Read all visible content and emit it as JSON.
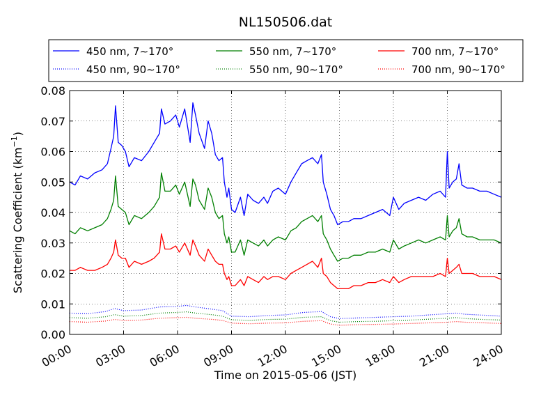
{
  "chart_data": {
    "type": "line",
    "title": "NL150506.dat",
    "xlabel": "Time on 2015-05-06 (JST)",
    "ylabel": "Scattering Coefficient (km",
    "ylabel_sup": "−1",
    "ylabel_close": ")",
    "x_unit": "hours",
    "xlim": [
      0,
      24
    ],
    "ylim": [
      0,
      0.08
    ],
    "grid": true,
    "legend_placement": "top-outside",
    "x_ticks": [
      0,
      3,
      6,
      9,
      12,
      15,
      18,
      21,
      24
    ],
    "x_tick_labels": [
      "00:00",
      "03:00",
      "06:00",
      "09:00",
      "12:00",
      "15:00",
      "18:00",
      "21:00",
      "24:00"
    ],
    "y_ticks": [
      0,
      0.01,
      0.02,
      0.03,
      0.04,
      0.05,
      0.06,
      0.07,
      0.08
    ],
    "y_tick_labels": [
      "0.00",
      "0.01",
      "0.02",
      "0.03",
      "0.04",
      "0.05",
      "0.06",
      "0.07",
      "0.08"
    ],
    "series": [
      {
        "name": "450 nm, 7∼170°",
        "color": "#0000ff",
        "style": "solid",
        "x": [
          0.0,
          0.3,
          0.6,
          1.0,
          1.4,
          1.8,
          2.1,
          2.3,
          2.45,
          2.55,
          2.7,
          2.9,
          3.1,
          3.3,
          3.6,
          4.0,
          4.4,
          4.7,
          5.0,
          5.1,
          5.3,
          5.6,
          5.9,
          6.1,
          6.4,
          6.7,
          6.85,
          7.0,
          7.2,
          7.5,
          7.7,
          7.9,
          8.1,
          8.3,
          8.5,
          8.6,
          8.75,
          8.85,
          9.0,
          9.2,
          9.5,
          9.7,
          9.9,
          10.2,
          10.5,
          10.8,
          11.0,
          11.3,
          11.6,
          12.0,
          12.3,
          12.6,
          12.9,
          13.2,
          13.5,
          13.8,
          14.0,
          14.1,
          14.3,
          14.5,
          14.7,
          14.9,
          15.2,
          15.5,
          15.8,
          16.2,
          16.6,
          17.0,
          17.4,
          17.8,
          18.0,
          18.3,
          18.6,
          19.0,
          19.4,
          19.8,
          20.2,
          20.6,
          20.9,
          21.0,
          21.1,
          21.3,
          21.5,
          21.65,
          21.8,
          22.1,
          22.4,
          22.8,
          23.2,
          23.6,
          24.0
        ],
        "y": [
          0.05,
          0.049,
          0.052,
          0.051,
          0.053,
          0.054,
          0.056,
          0.061,
          0.065,
          0.075,
          0.063,
          0.062,
          0.06,
          0.055,
          0.058,
          0.057,
          0.06,
          0.063,
          0.066,
          0.074,
          0.069,
          0.07,
          0.072,
          0.068,
          0.074,
          0.063,
          0.076,
          0.072,
          0.066,
          0.061,
          0.07,
          0.066,
          0.059,
          0.057,
          0.058,
          0.05,
          0.045,
          0.048,
          0.041,
          0.04,
          0.045,
          0.039,
          0.046,
          0.044,
          0.043,
          0.045,
          0.043,
          0.047,
          0.048,
          0.046,
          0.05,
          0.053,
          0.056,
          0.057,
          0.058,
          0.056,
          0.059,
          0.05,
          0.046,
          0.041,
          0.039,
          0.036,
          0.037,
          0.037,
          0.038,
          0.038,
          0.039,
          0.04,
          0.041,
          0.039,
          0.045,
          0.041,
          0.043,
          0.044,
          0.045,
          0.044,
          0.046,
          0.047,
          0.045,
          0.06,
          0.048,
          0.05,
          0.051,
          0.056,
          0.049,
          0.048,
          0.048,
          0.047,
          0.047,
          0.046,
          0.045
        ]
      },
      {
        "name": "550 nm, 7∼170°",
        "color": "#007f00",
        "style": "solid",
        "x": [
          0.0,
          0.3,
          0.6,
          1.0,
          1.4,
          1.8,
          2.1,
          2.3,
          2.45,
          2.55,
          2.7,
          2.9,
          3.1,
          3.3,
          3.6,
          4.0,
          4.4,
          4.7,
          5.0,
          5.1,
          5.3,
          5.6,
          5.9,
          6.1,
          6.4,
          6.7,
          6.85,
          7.0,
          7.2,
          7.5,
          7.7,
          7.9,
          8.1,
          8.3,
          8.5,
          8.6,
          8.75,
          8.85,
          9.0,
          9.2,
          9.5,
          9.7,
          9.9,
          10.2,
          10.5,
          10.8,
          11.0,
          11.3,
          11.6,
          12.0,
          12.3,
          12.6,
          12.9,
          13.2,
          13.5,
          13.8,
          14.0,
          14.1,
          14.3,
          14.5,
          14.7,
          14.9,
          15.2,
          15.5,
          15.8,
          16.2,
          16.6,
          17.0,
          17.4,
          17.8,
          18.0,
          18.3,
          18.6,
          19.0,
          19.4,
          19.8,
          20.2,
          20.6,
          20.9,
          21.0,
          21.1,
          21.3,
          21.5,
          21.65,
          21.8,
          22.1,
          22.4,
          22.8,
          23.2,
          23.6,
          24.0
        ],
        "y": [
          0.034,
          0.033,
          0.035,
          0.034,
          0.035,
          0.036,
          0.038,
          0.041,
          0.044,
          0.052,
          0.042,
          0.041,
          0.04,
          0.036,
          0.039,
          0.038,
          0.04,
          0.042,
          0.045,
          0.053,
          0.047,
          0.047,
          0.049,
          0.046,
          0.05,
          0.042,
          0.051,
          0.049,
          0.044,
          0.041,
          0.048,
          0.045,
          0.04,
          0.038,
          0.039,
          0.033,
          0.03,
          0.032,
          0.027,
          0.027,
          0.031,
          0.026,
          0.031,
          0.03,
          0.029,
          0.031,
          0.029,
          0.031,
          0.032,
          0.031,
          0.034,
          0.035,
          0.037,
          0.038,
          0.039,
          0.037,
          0.039,
          0.033,
          0.031,
          0.028,
          0.026,
          0.024,
          0.025,
          0.025,
          0.026,
          0.026,
          0.027,
          0.027,
          0.028,
          0.027,
          0.031,
          0.028,
          0.029,
          0.03,
          0.031,
          0.03,
          0.031,
          0.032,
          0.031,
          0.039,
          0.032,
          0.034,
          0.035,
          0.038,
          0.033,
          0.032,
          0.032,
          0.031,
          0.031,
          0.031,
          0.03
        ]
      },
      {
        "name": "700 nm, 7∼170°",
        "color": "#ff0000",
        "style": "solid",
        "x": [
          0.0,
          0.3,
          0.6,
          1.0,
          1.4,
          1.8,
          2.1,
          2.3,
          2.45,
          2.55,
          2.7,
          2.9,
          3.1,
          3.3,
          3.6,
          4.0,
          4.4,
          4.7,
          5.0,
          5.1,
          5.3,
          5.6,
          5.9,
          6.1,
          6.4,
          6.7,
          6.85,
          7.0,
          7.2,
          7.5,
          7.7,
          7.9,
          8.1,
          8.3,
          8.5,
          8.6,
          8.75,
          8.85,
          9.0,
          9.2,
          9.5,
          9.7,
          9.9,
          10.2,
          10.5,
          10.8,
          11.0,
          11.3,
          11.6,
          12.0,
          12.3,
          12.6,
          12.9,
          13.2,
          13.5,
          13.8,
          14.0,
          14.1,
          14.3,
          14.5,
          14.7,
          14.9,
          15.2,
          15.5,
          15.8,
          16.2,
          16.6,
          17.0,
          17.4,
          17.8,
          18.0,
          18.3,
          18.6,
          19.0,
          19.4,
          19.8,
          20.2,
          20.6,
          20.9,
          21.0,
          21.1,
          21.3,
          21.5,
          21.65,
          21.8,
          22.1,
          22.4,
          22.8,
          23.2,
          23.6,
          24.0
        ],
        "y": [
          0.021,
          0.021,
          0.022,
          0.021,
          0.021,
          0.022,
          0.023,
          0.025,
          0.027,
          0.031,
          0.026,
          0.025,
          0.025,
          0.022,
          0.024,
          0.023,
          0.024,
          0.025,
          0.027,
          0.033,
          0.028,
          0.028,
          0.029,
          0.027,
          0.03,
          0.026,
          0.031,
          0.029,
          0.026,
          0.024,
          0.028,
          0.026,
          0.024,
          0.023,
          0.023,
          0.02,
          0.018,
          0.019,
          0.016,
          0.016,
          0.018,
          0.016,
          0.019,
          0.018,
          0.017,
          0.019,
          0.018,
          0.019,
          0.019,
          0.018,
          0.02,
          0.021,
          0.022,
          0.023,
          0.024,
          0.022,
          0.025,
          0.02,
          0.019,
          0.017,
          0.016,
          0.015,
          0.015,
          0.015,
          0.016,
          0.016,
          0.017,
          0.017,
          0.018,
          0.017,
          0.019,
          0.017,
          0.018,
          0.019,
          0.019,
          0.019,
          0.019,
          0.02,
          0.019,
          0.025,
          0.02,
          0.021,
          0.022,
          0.023,
          0.02,
          0.02,
          0.02,
          0.019,
          0.019,
          0.019,
          0.018
        ]
      },
      {
        "name": "450 nm, 90∼170°",
        "color": "#0000ff",
        "style": "dotted",
        "x": [
          0.0,
          1.0,
          2.0,
          2.5,
          3.0,
          4.0,
          5.0,
          6.0,
          6.5,
          7.0,
          8.0,
          8.5,
          9.0,
          10.0,
          11.0,
          12.0,
          13.0,
          14.0,
          14.5,
          15.0,
          16.0,
          17.0,
          18.0,
          19.0,
          20.0,
          21.0,
          21.5,
          22.0,
          23.0,
          24.0
        ],
        "y": [
          0.007,
          0.0068,
          0.0075,
          0.0085,
          0.0078,
          0.008,
          0.009,
          0.0092,
          0.0095,
          0.009,
          0.0082,
          0.0078,
          0.006,
          0.0058,
          0.0062,
          0.0064,
          0.0072,
          0.0075,
          0.0058,
          0.0052,
          0.0054,
          0.0056,
          0.0058,
          0.006,
          0.0064,
          0.0068,
          0.007,
          0.0066,
          0.0063,
          0.006
        ]
      },
      {
        "name": "550 nm, 90∼170°",
        "color": "#007f00",
        "style": "dotted",
        "x": [
          0.0,
          1.0,
          2.0,
          2.5,
          3.0,
          4.0,
          5.0,
          6.0,
          6.5,
          7.0,
          8.0,
          8.5,
          9.0,
          10.0,
          11.0,
          12.0,
          13.0,
          14.0,
          14.5,
          15.0,
          16.0,
          17.0,
          18.0,
          19.0,
          20.0,
          21.0,
          21.5,
          22.0,
          23.0,
          24.0
        ],
        "y": [
          0.0055,
          0.0053,
          0.0058,
          0.0065,
          0.006,
          0.0062,
          0.007,
          0.0072,
          0.0074,
          0.007,
          0.0064,
          0.006,
          0.0048,
          0.0046,
          0.0049,
          0.005,
          0.0056,
          0.0058,
          0.0045,
          0.004,
          0.0042,
          0.0043,
          0.0045,
          0.0047,
          0.005,
          0.0053,
          0.0055,
          0.0052,
          0.0049,
          0.0047
        ]
      },
      {
        "name": "700 nm, 90∼170°",
        "color": "#ff0000",
        "style": "dotted",
        "x": [
          0.0,
          1.0,
          2.0,
          2.5,
          3.0,
          4.0,
          5.0,
          6.0,
          6.5,
          7.0,
          8.0,
          8.5,
          9.0,
          10.0,
          11.0,
          12.0,
          13.0,
          14.0,
          14.5,
          15.0,
          16.0,
          17.0,
          18.0,
          19.0,
          20.0,
          21.0,
          21.5,
          22.0,
          23.0,
          24.0
        ],
        "y": [
          0.0042,
          0.004,
          0.0044,
          0.0049,
          0.0046,
          0.0047,
          0.0053,
          0.0055,
          0.0056,
          0.0053,
          0.0049,
          0.0046,
          0.0037,
          0.0035,
          0.0037,
          0.0038,
          0.0043,
          0.0045,
          0.0034,
          0.003,
          0.0032,
          0.0033,
          0.0034,
          0.0036,
          0.0038,
          0.004,
          0.0042,
          0.004,
          0.0038,
          0.0036
        ]
      }
    ],
    "legend_order": [
      0,
      1,
      2,
      3,
      4,
      5
    ]
  }
}
